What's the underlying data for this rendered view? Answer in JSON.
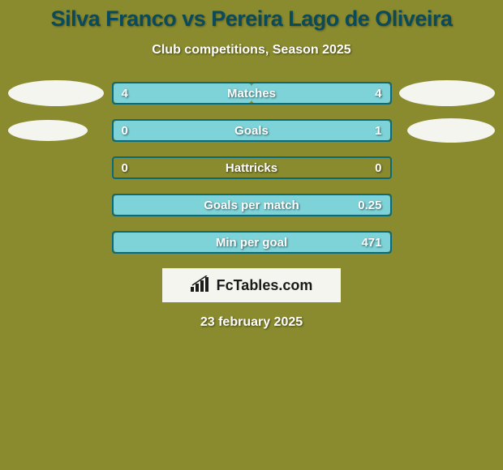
{
  "background_color": "#8a8a2e",
  "title": {
    "text": "Silva Franco vs Pereira Lago de Oliveira",
    "color": "#0a4a5a",
    "fontsize": 27
  },
  "subtitle": {
    "text": "Club competitions, Season 2025",
    "color": "#ffffff",
    "fontsize": 16
  },
  "ellipse_color": "#f5f5f0",
  "bar_border_color": "#0a6a7a",
  "bar_fill_color": "#7dd3d8",
  "value_fontsize": 15,
  "label_fontsize": 15,
  "stats": [
    {
      "label": "Matches",
      "left_value": "4",
      "right_value": "4",
      "left_fill_pct": 50,
      "right_fill_pct": 50,
      "show_left_ellipse": true,
      "show_right_ellipse": true,
      "left_ellipse_w": 118,
      "left_ellipse_h": 32,
      "right_ellipse_w": 118,
      "right_ellipse_h": 32
    },
    {
      "label": "Goals",
      "left_value": "0",
      "right_value": "1",
      "left_fill_pct": 0,
      "right_fill_pct": 100,
      "show_left_ellipse": true,
      "show_right_ellipse": true,
      "left_ellipse_w": 98,
      "left_ellipse_h": 26,
      "right_ellipse_w": 108,
      "right_ellipse_h": 30
    },
    {
      "label": "Hattricks",
      "left_value": "0",
      "right_value": "0",
      "left_fill_pct": 0,
      "right_fill_pct": 0,
      "show_left_ellipse": false,
      "show_right_ellipse": false
    },
    {
      "label": "Goals per match",
      "left_value": "",
      "right_value": "0.25",
      "left_fill_pct": 0,
      "right_fill_pct": 100,
      "show_left_ellipse": false,
      "show_right_ellipse": false
    },
    {
      "label": "Min per goal",
      "left_value": "",
      "right_value": "471",
      "left_fill_pct": 0,
      "right_fill_pct": 100,
      "show_left_ellipse": false,
      "show_right_ellipse": false
    }
  ],
  "logo": {
    "text": "FcTables.com",
    "background": "#f5f5f0",
    "text_color": "#1a1a1a",
    "fontsize": 18
  },
  "date": {
    "text": "23 february 2025",
    "color": "#ffffff",
    "fontsize": 16
  }
}
